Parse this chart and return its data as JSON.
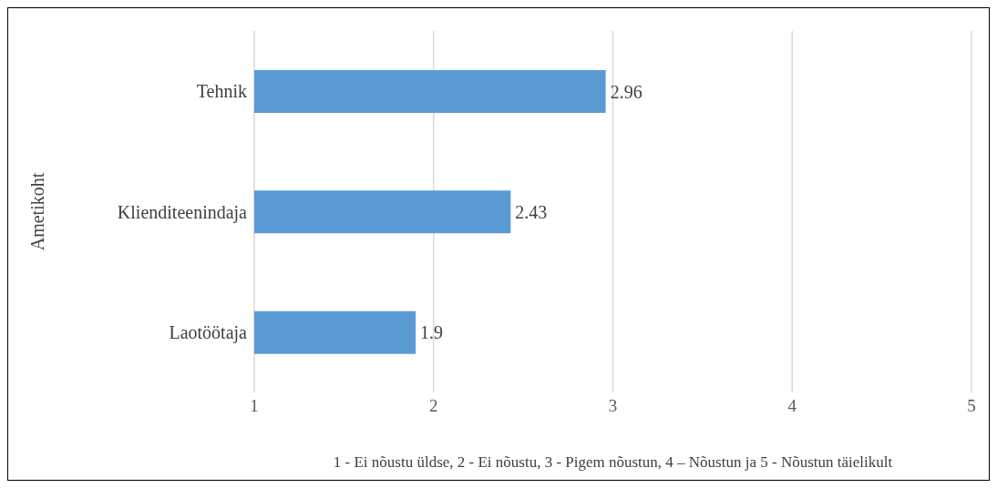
{
  "chart_data": {
    "type": "bar",
    "orientation": "horizontal",
    "categories": [
      "Tehnik",
      "Klienditeenindaja",
      "Laotöötaja"
    ],
    "values": [
      2.96,
      2.43,
      1.9
    ],
    "color": "#5b9bd5",
    "xlim": [
      1,
      5
    ],
    "xticks": [
      1,
      2,
      3,
      4,
      5
    ],
    "grid": "x",
    "data_labels": true,
    "ylabel": "Ametikoht",
    "xlabel": "1 - Ei nõustu üldse, 2 -  Ei nõustu, 3 - Pigem nõustun, 4 – Nõustun ja 5 - Nõustun täielikult"
  }
}
